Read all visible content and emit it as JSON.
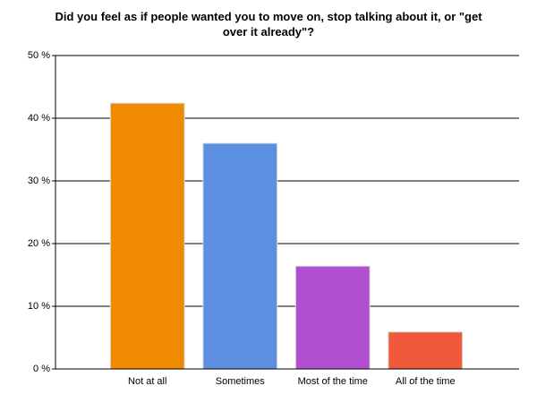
{
  "chart_data": {
    "type": "bar",
    "title": "Did you feel as if people wanted you to move on, stop talking about it, or \"get over it already\"?",
    "categories": [
      "Not at all",
      "Sometimes",
      "Most of the time",
      "All of the time"
    ],
    "values": [
      42.4,
      36,
      16.4,
      5.9
    ],
    "colors": [
      "#f08a00",
      "#5b8fe0",
      "#b04fd0",
      "#f05a3a"
    ],
    "ylim": [
      0,
      50
    ],
    "yticks": [
      {
        "value": 0,
        "label": "0 %"
      },
      {
        "value": 10,
        "label": "10 %"
      },
      {
        "value": 20,
        "label": "20 %"
      },
      {
        "value": 30,
        "label": "30 %"
      },
      {
        "value": 40,
        "label": "40 %"
      },
      {
        "value": 50,
        "label": "50 %"
      }
    ],
    "grid": true
  }
}
